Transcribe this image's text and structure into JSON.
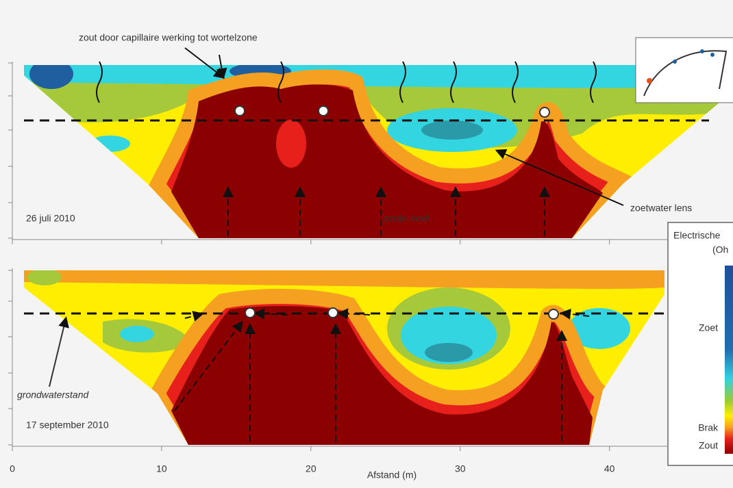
{
  "chart_data": {
    "type": "contour",
    "xlabel": "Afstand (m)",
    "xlim": [
      0,
      48
    ],
    "xticks": [
      0,
      10,
      20,
      30,
      40
    ],
    "annotations": [
      "zout door capillaire werking tot wortelzone",
      "zoetwater lens",
      "zoute kwel",
      "grondwaterstand"
    ],
    "panels": [
      {
        "label": "26 juli 2010"
      },
      {
        "label": "17 september 2010"
      }
    ],
    "legend": {
      "title": [
        "Electrische",
        "(Oh"
      ],
      "labels": [
        "Zoet",
        "Brak",
        "Zout"
      ]
    }
  }
}
